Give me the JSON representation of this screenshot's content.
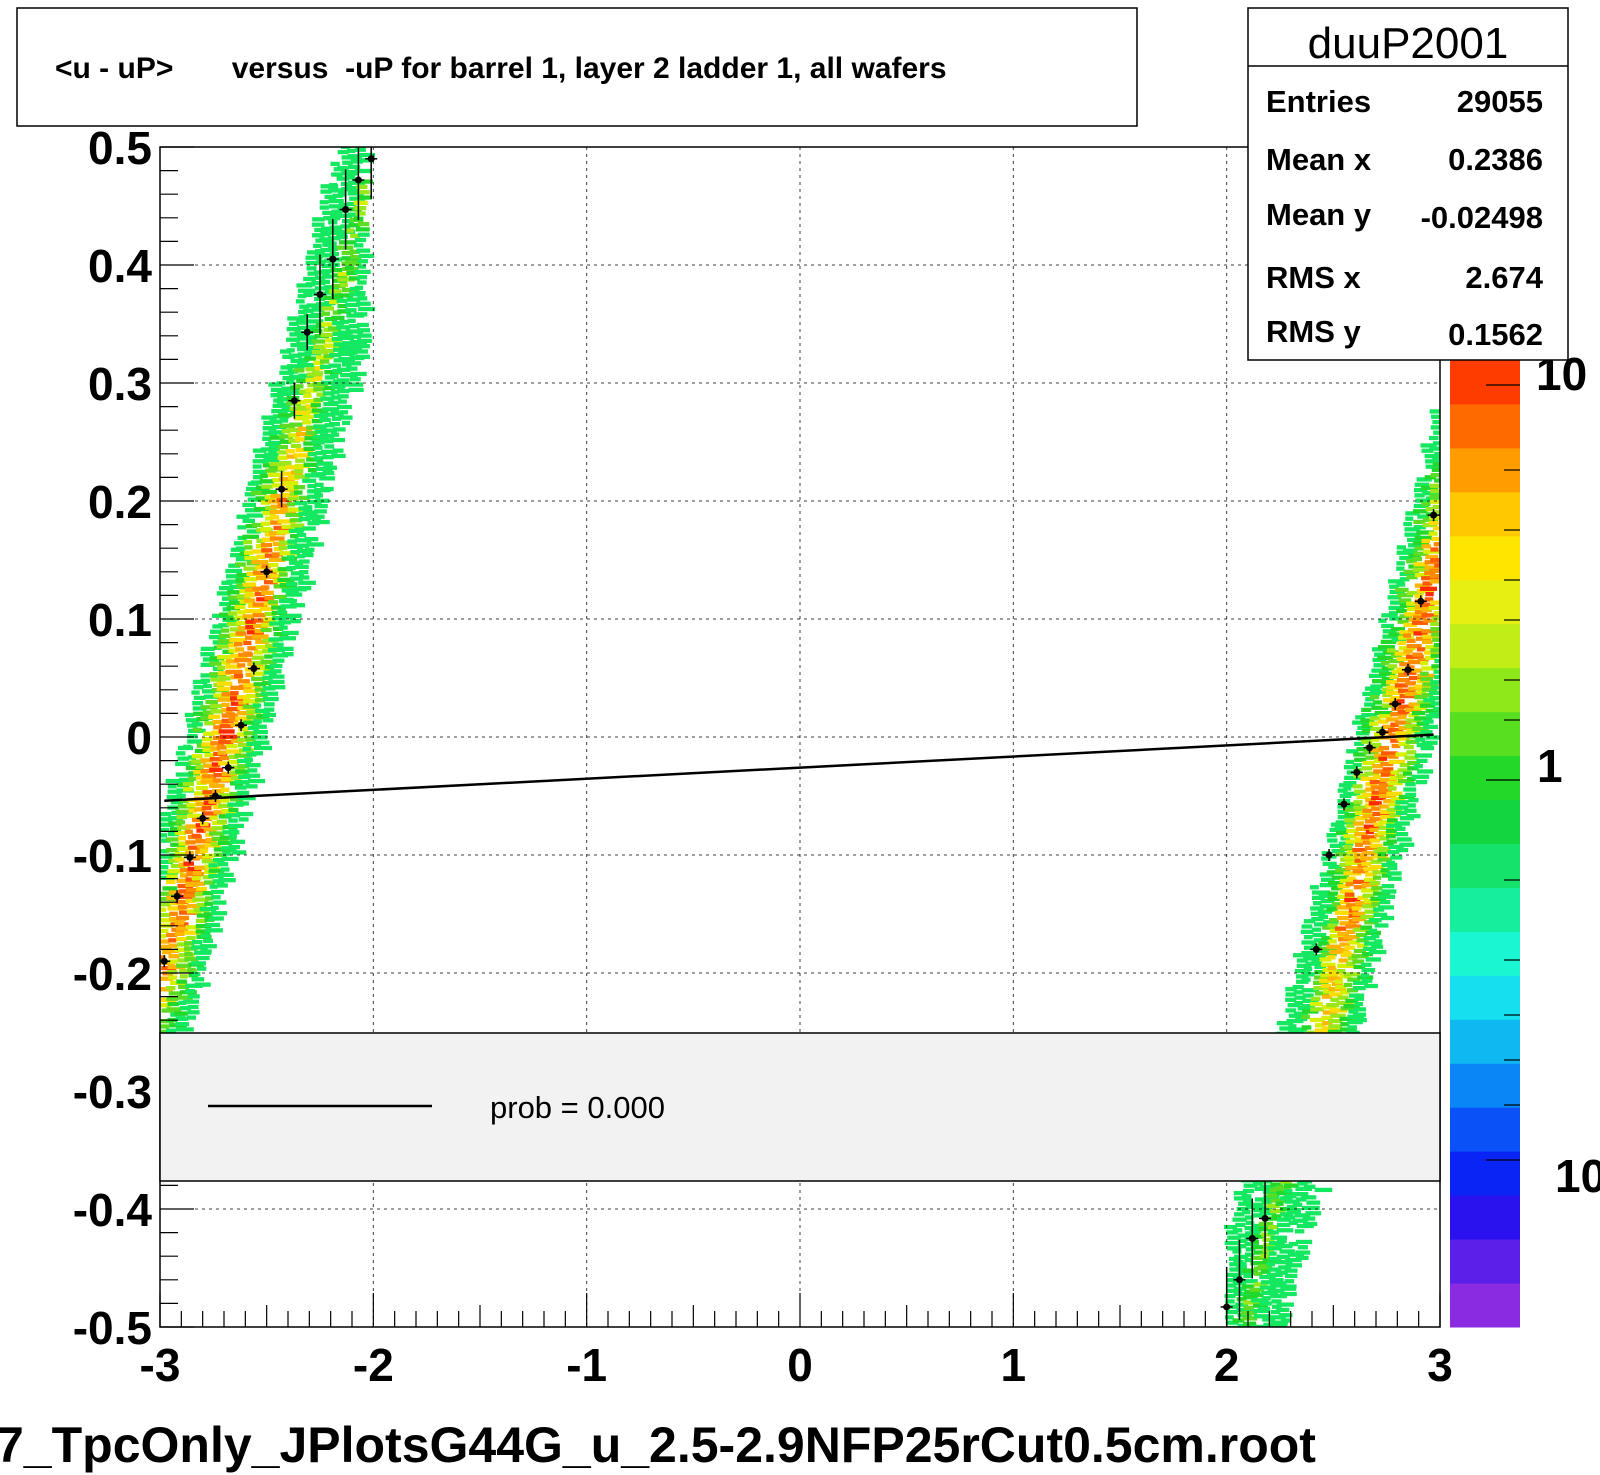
{
  "chart_data": {
    "type": "heatmap",
    "title": "<u - uP>       versus  -uP for barrel 1, layer 2 ladder 1, all wafers",
    "footer": "7_TpcOnly_JPlotsG44G_u_2.5-2.9NFP25rCut0.5cm.root",
    "xlim": [
      -3,
      3
    ],
    "ylim": [
      -0.5,
      0.5
    ],
    "x_ticks": [
      "-3",
      "-2",
      "-1",
      "0",
      "1",
      "2",
      "3"
    ],
    "y_ticks": [
      "-0.5",
      "-0.4",
      "-0.3",
      "-0.2",
      "-0.1",
      "0",
      "0.1",
      "0.2",
      "0.3",
      "0.4",
      "0.5"
    ],
    "grid": true,
    "z_scale": "log",
    "z_ticks": [
      "10",
      "1",
      "10"
    ],
    "stats": {
      "name": "duuP2001",
      "rows": [
        {
          "label": "Entries",
          "value": "29055"
        },
        {
          "label": "Mean x",
          "value": "0.2386"
        },
        {
          "label": "Mean y",
          "value": "-0.02498"
        },
        {
          "label": "RMS x",
          "value": "2.674"
        },
        {
          "label": "RMS y",
          "value": "0.1562"
        }
      ]
    },
    "legend": {
      "entries": [
        {
          "label": "prob = 0.000"
        }
      ]
    },
    "fit_line": {
      "x": [
        -2.98,
        2.97
      ],
      "y": [
        -0.054,
        0.002
      ]
    },
    "profile_points": [
      {
        "x": -2.98,
        "y": -0.19
      },
      {
        "x": -2.92,
        "y": -0.135
      },
      {
        "x": -2.86,
        "y": -0.102
      },
      {
        "x": -2.8,
        "y": -0.069
      },
      {
        "x": -2.74,
        "y": -0.05
      },
      {
        "x": -2.68,
        "y": -0.026
      },
      {
        "x": -2.62,
        "y": 0.01
      },
      {
        "x": -2.56,
        "y": 0.058
      },
      {
        "x": -2.5,
        "y": 0.14
      },
      {
        "x": -2.43,
        "y": 0.21
      },
      {
        "x": -2.37,
        "y": 0.285
      },
      {
        "x": -2.31,
        "y": 0.343
      },
      {
        "x": -2.25,
        "y": 0.375
      },
      {
        "x": -2.19,
        "y": 0.405
      },
      {
        "x": -2.13,
        "y": 0.447
      },
      {
        "x": -2.07,
        "y": 0.472
      },
      {
        "x": -2.01,
        "y": 0.49
      },
      {
        "x": 2.0,
        "y": -0.483
      },
      {
        "x": 2.06,
        "y": -0.46
      },
      {
        "x": 2.12,
        "y": -0.425
      },
      {
        "x": 2.18,
        "y": -0.408
      },
      {
        "x": 2.42,
        "y": -0.18
      },
      {
        "x": 2.48,
        "y": -0.1
      },
      {
        "x": 2.55,
        "y": -0.057
      },
      {
        "x": 2.61,
        "y": -0.03
      },
      {
        "x": 2.67,
        "y": -0.009
      },
      {
        "x": 2.73,
        "y": 0.004
      },
      {
        "x": 2.79,
        "y": 0.028
      },
      {
        "x": 2.85,
        "y": 0.057
      },
      {
        "x": 2.91,
        "y": 0.115
      },
      {
        "x": 2.97,
        "y": 0.188
      }
    ],
    "bands": [
      {
        "x": [
          -3.0,
          -2.05
        ],
        "y_center_at_start": -0.19,
        "slope": 0.7,
        "width": 0.2
      },
      {
        "x": [
          2.0,
          3.0
        ],
        "y_center_at_start": -0.54,
        "slope": 0.72,
        "width": 0.2
      }
    ]
  }
}
